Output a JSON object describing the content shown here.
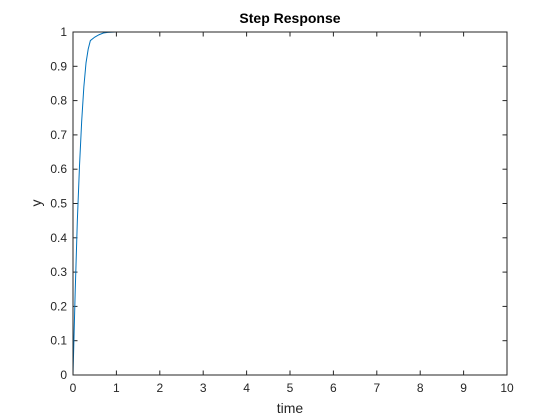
{
  "chart_data": {
    "type": "line",
    "title": "Step Response",
    "xlabel": "time",
    "ylabel": "y",
    "xlim": [
      0,
      10
    ],
    "ylim": [
      0,
      1
    ],
    "x_ticks": [
      0,
      1,
      2,
      3,
      4,
      5,
      6,
      7,
      8,
      9,
      10
    ],
    "x_tick_labels": [
      "0",
      "1",
      "2",
      "3",
      "4",
      "5",
      "6",
      "7",
      "8",
      "9",
      "10"
    ],
    "y_ticks": [
      0,
      0.1,
      0.2,
      0.3,
      0.4,
      0.5,
      0.6,
      0.7,
      0.8,
      0.9,
      1
    ],
    "y_tick_labels": [
      "0",
      "0.1",
      "0.2",
      "0.3",
      "0.4",
      "0.5",
      "0.6",
      "0.7",
      "0.8",
      "0.9",
      "1"
    ],
    "grid": false,
    "series": [
      {
        "color": "#0072BD",
        "x": [
          0,
          0.05,
          0.1,
          0.15,
          0.2,
          0.25,
          0.3,
          0.35,
          0.4,
          0.5,
          0.6,
          0.7,
          0.8,
          1,
          2,
          3,
          4,
          5,
          6,
          7,
          8,
          9,
          10
        ],
        "y": [
          0,
          0.24,
          0.45,
          0.61,
          0.74,
          0.84,
          0.91,
          0.95,
          0.975,
          0.985,
          0.992,
          0.997,
          0.999,
          1,
          1,
          1,
          1,
          1,
          1,
          1,
          1,
          1,
          1
        ]
      }
    ]
  }
}
